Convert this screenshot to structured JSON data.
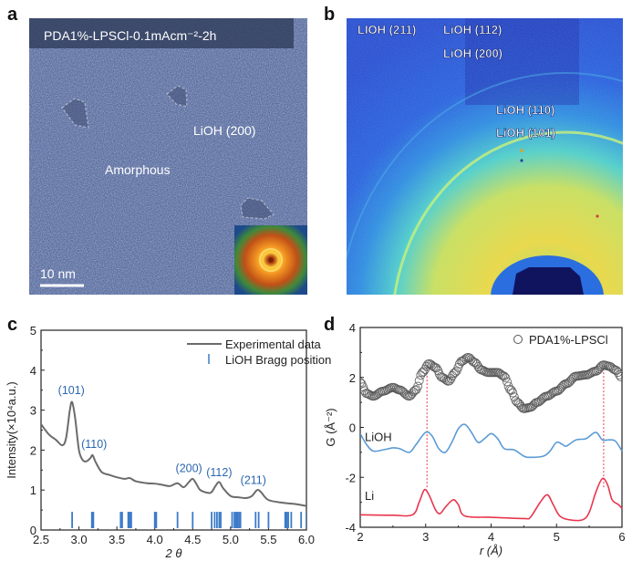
{
  "panels": {
    "a": {
      "letter": "a",
      "title": "PDA1%-LPSCl-0.1mAcm⁻²-2h",
      "label_lioh": "LiOH (200)",
      "label_amorphous": "Amorphous",
      "scale_bar": "10 nm"
    },
    "b": {
      "letter": "b",
      "labels": [
        "LIOH (211)",
        "LiOH (112)",
        "LiOH (200)",
        "LiOH (110)",
        "LiOH (101)"
      ]
    },
    "c": {
      "letter": "c"
    },
    "d": {
      "letter": "d"
    }
  },
  "colors": {
    "experimental": "#6b6b6b",
    "bragg": "#3b7bc8",
    "annotation": "#2a66b0",
    "lioh": "#5b9bd5",
    "li": "#e8364e",
    "dashed": "#e8364e",
    "pda": "#555555"
  },
  "chart_data": [
    {
      "type": "line",
      "panel": "c",
      "xlabel": "2 θ",
      "ylabel": "Intensity(×10⁴a.u.)",
      "xlim": [
        2.5,
        6.0
      ],
      "ylim": [
        0,
        5
      ],
      "xticks": [
        "2.5",
        "3.0",
        "3.5",
        "4.0",
        "4.5",
        "5.0",
        "5.5",
        "6.0"
      ],
      "yticks": [
        "0",
        "1",
        "2",
        "3",
        "4",
        "5"
      ],
      "legend": {
        "placement": "top-right",
        "entries": [
          "Experimental data",
          "LiOH  Bragg position"
        ]
      },
      "series": [
        {
          "name": "Experimental data",
          "x": [
            2.5,
            2.6,
            2.7,
            2.78,
            2.83,
            2.88,
            2.91,
            2.95,
            3.0,
            3.05,
            3.1,
            3.15,
            3.18,
            3.22,
            3.3,
            3.4,
            3.5,
            3.6,
            3.67,
            3.75,
            3.9,
            4.0,
            4.1,
            4.2,
            4.3,
            4.38,
            4.45,
            4.5,
            4.55,
            4.6,
            4.7,
            4.75,
            4.8,
            4.85,
            4.9,
            5.0,
            5.1,
            5.2,
            5.28,
            5.35,
            5.4,
            5.5,
            5.7,
            5.85,
            6.0
          ],
          "y": [
            2.65,
            2.4,
            2.25,
            2.12,
            2.3,
            3.0,
            3.2,
            2.8,
            2.0,
            1.75,
            1.72,
            1.8,
            1.87,
            1.7,
            1.45,
            1.38,
            1.32,
            1.28,
            1.3,
            1.22,
            1.17,
            1.16,
            1.13,
            1.1,
            1.17,
            1.07,
            1.2,
            1.28,
            1.15,
            1.0,
            0.93,
            0.95,
            1.1,
            1.2,
            1.05,
            0.85,
            0.82,
            0.8,
            0.85,
            1.0,
            0.95,
            0.75,
            0.68,
            0.65,
            0.6
          ]
        }
      ],
      "bragg_positions": [
        2.91,
        3.17,
        3.19,
        3.55,
        3.57,
        3.65,
        3.67,
        3.69,
        4.0,
        4.02,
        4.3,
        4.5,
        4.75,
        4.79,
        4.82,
        4.85,
        4.87,
        5.02,
        5.05,
        5.07,
        5.09,
        5.11,
        5.13,
        5.33,
        5.37,
        5.5,
        5.72,
        5.74,
        5.76,
        5.8,
        5.93,
        6.0
      ],
      "bragg_range": [
        0.0,
        0.5
      ],
      "annotations": [
        {
          "text": "(101)",
          "x": 2.9,
          "y": 3.4
        },
        {
          "text": "(110)",
          "x": 3.2,
          "y": 2.05
        },
        {
          "text": "(200)",
          "x": 4.45,
          "y": 1.45
        },
        {
          "text": "(112)",
          "x": 4.85,
          "y": 1.35
        },
        {
          "text": "(211)",
          "x": 5.3,
          "y": 1.15
        }
      ]
    },
    {
      "type": "line",
      "panel": "d",
      "xlabel": "r (Å)",
      "ylabel": "G (Å⁻²)",
      "xlim": [
        2,
        6
      ],
      "ylim": [
        -4,
        4
      ],
      "xticks": [
        "2",
        "3",
        "4",
        "5",
        "6"
      ],
      "yticks": [
        "-4",
        "-2",
        "0",
        "2",
        "4"
      ],
      "legend": {
        "placement": "top-right",
        "entries": [
          "PDA1%-LPSCl"
        ]
      },
      "series": [
        {
          "name": "PDA1%-LPSCl",
          "marker": "open-circle",
          "x": [
            2.0,
            2.1,
            2.2,
            2.35,
            2.5,
            2.6,
            2.75,
            2.85,
            2.95,
            3.05,
            3.15,
            3.25,
            3.35,
            3.45,
            3.55,
            3.65,
            3.75,
            3.85,
            3.95,
            4.1,
            4.2,
            4.3,
            4.4,
            4.5,
            4.6,
            4.7,
            4.85,
            5.0,
            5.15,
            5.3,
            5.45,
            5.6,
            5.72,
            5.8,
            5.9,
            6.0
          ],
          "y": [
            1.8,
            1.35,
            1.25,
            1.45,
            1.6,
            1.5,
            1.25,
            1.5,
            2.2,
            2.55,
            2.4,
            2.0,
            1.85,
            2.2,
            2.65,
            2.8,
            2.6,
            2.3,
            2.2,
            2.2,
            2.05,
            1.5,
            1.0,
            0.75,
            0.8,
            1.0,
            1.25,
            1.45,
            1.75,
            2.05,
            2.1,
            2.25,
            2.5,
            2.45,
            2.3,
            2.0
          ]
        },
        {
          "name": "LiOH",
          "x": [
            2.0,
            2.1,
            2.2,
            2.35,
            2.5,
            2.6,
            2.75,
            2.85,
            3.0,
            3.1,
            3.2,
            3.3,
            3.4,
            3.5,
            3.6,
            3.7,
            3.8,
            3.9,
            4.0,
            4.1,
            4.2,
            4.35,
            4.5,
            4.6,
            4.8,
            4.9,
            5.0,
            5.1,
            5.15,
            5.3,
            5.45,
            5.6,
            5.7,
            5.8,
            5.9,
            6.0
          ],
          "y": [
            -0.25,
            -0.7,
            -0.95,
            -0.9,
            -0.82,
            -0.85,
            -1.0,
            -0.7,
            -0.2,
            -0.35,
            -0.85,
            -1.0,
            -0.6,
            -0.05,
            0.12,
            -0.2,
            -0.6,
            -0.45,
            -0.25,
            -0.45,
            -0.85,
            -0.9,
            -1.15,
            -1.2,
            -1.15,
            -0.95,
            -0.6,
            -0.7,
            -0.75,
            -0.5,
            -0.45,
            -0.2,
            -0.5,
            -0.5,
            -0.55,
            -0.95
          ]
        },
        {
          "name": "Li",
          "x": [
            2.0,
            2.5,
            2.8,
            2.9,
            2.98,
            3.05,
            3.15,
            3.22,
            3.3,
            3.42,
            3.5,
            3.6,
            4.0,
            4.5,
            4.6,
            4.75,
            4.86,
            4.95,
            5.05,
            5.2,
            5.4,
            5.5,
            5.6,
            5.7,
            5.78,
            5.85,
            5.95,
            6.0
          ],
          "y": [
            -3.5,
            -3.52,
            -3.5,
            -3.0,
            -2.5,
            -2.7,
            -3.3,
            -3.45,
            -3.2,
            -2.9,
            -3.1,
            -3.55,
            -3.6,
            -3.65,
            -3.6,
            -3.0,
            -2.7,
            -3.1,
            -3.55,
            -3.7,
            -3.7,
            -3.4,
            -2.6,
            -2.05,
            -2.3,
            -2.9,
            -3.1,
            -3.25
          ]
        }
      ],
      "series_labels": [
        "LiOH",
        "Li"
      ],
      "reference_lines_r": [
        3.02,
        5.72
      ]
    }
  ]
}
